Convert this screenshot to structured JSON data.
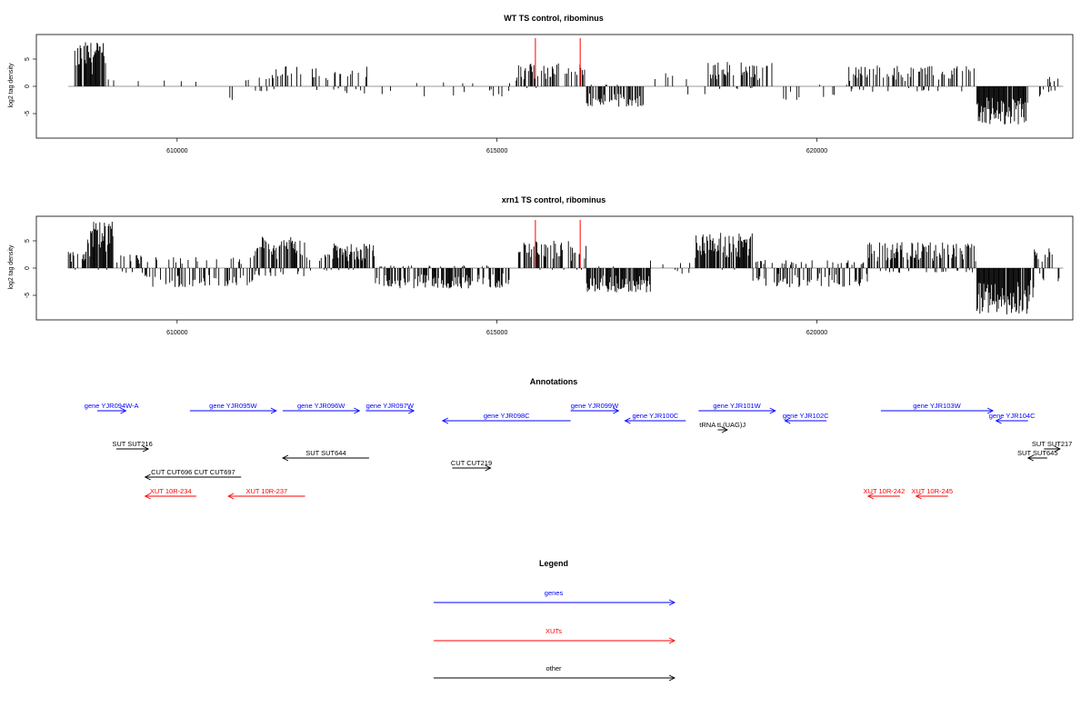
{
  "chart_data": [
    {
      "type": "bar",
      "title": "WT TS control, ribominus",
      "ylabel": "log2 tag density",
      "xlim": [
        607800,
        624000
      ],
      "ylim": [
        -9.5,
        9.5
      ],
      "xticks": [
        610000,
        615000,
        620000
      ],
      "yticks": [
        -5,
        0,
        5
      ],
      "markers": [
        615600,
        616300
      ],
      "segments": [
        {
          "from": 608400,
          "to": 608900,
          "min": -0.3,
          "max": 8.2,
          "density": 0.8
        },
        {
          "from": 608900,
          "to": 609500,
          "min": -0.3,
          "max": 1.5,
          "density": 0.05
        },
        {
          "from": 609500,
          "to": 610800,
          "min": -0.5,
          "max": 1.5,
          "density": 0.04
        },
        {
          "from": 610800,
          "to": 611200,
          "min": -2.8,
          "max": 1.2,
          "density": 0.15
        },
        {
          "from": 611200,
          "to": 613000,
          "min": -1.3,
          "max": 3.8,
          "density": 0.35
        },
        {
          "from": 613000,
          "to": 615200,
          "min": -2.0,
          "max": 0.8,
          "density": 0.08
        },
        {
          "from": 615300,
          "to": 616400,
          "min": -0.3,
          "max": 4.2,
          "density": 0.45
        },
        {
          "from": 616400,
          "to": 617300,
          "min": -3.8,
          "max": 0.3,
          "density": 0.6
        },
        {
          "from": 617300,
          "to": 618300,
          "min": -1.5,
          "max": 2.5,
          "density": 0.05
        },
        {
          "from": 618300,
          "to": 619300,
          "min": -0.5,
          "max": 4.5,
          "density": 0.5
        },
        {
          "from": 619300,
          "to": 620500,
          "min": -2.5,
          "max": 0.5,
          "density": 0.15
        },
        {
          "from": 620500,
          "to": 622500,
          "min": -1.0,
          "max": 3.8,
          "density": 0.45
        },
        {
          "from": 622500,
          "to": 623300,
          "min": -7.0,
          "max": -0.3,
          "density": 0.9
        },
        {
          "from": 623300,
          "to": 623800,
          "min": -2.0,
          "max": 1.8,
          "density": 0.3
        }
      ]
    },
    {
      "type": "bar",
      "title": "xrn1 TS control, ribominus",
      "ylabel": "log2 tag density",
      "xlim": [
        607800,
        624000
      ],
      "ylim": [
        -9.5,
        9.5
      ],
      "xticks": [
        610000,
        615000,
        620000
      ],
      "yticks": [
        -5,
        0,
        5
      ],
      "markers": [
        615600,
        616300
      ],
      "segments": [
        {
          "from": 608300,
          "to": 608600,
          "min": -0.3,
          "max": 3.0,
          "density": 0.5
        },
        {
          "from": 608600,
          "to": 609000,
          "min": -0.3,
          "max": 8.5,
          "density": 0.9
        },
        {
          "from": 609000,
          "to": 609500,
          "min": -1.0,
          "max": 2.5,
          "density": 0.4
        },
        {
          "from": 609500,
          "to": 611200,
          "min": -3.5,
          "max": 2.0,
          "density": 0.45
        },
        {
          "from": 611200,
          "to": 612000,
          "min": -1.5,
          "max": 5.8,
          "density": 0.9
        },
        {
          "from": 612000,
          "to": 612300,
          "min": -1.0,
          "max": 2.0,
          "density": 0.3
        },
        {
          "from": 612300,
          "to": 613100,
          "min": -0.5,
          "max": 4.5,
          "density": 0.7
        },
        {
          "from": 613100,
          "to": 615200,
          "min": -3.8,
          "max": 0.5,
          "density": 0.65
        },
        {
          "from": 615300,
          "to": 616400,
          "min": -0.3,
          "max": 5.0,
          "density": 0.6
        },
        {
          "from": 616400,
          "to": 617400,
          "min": -4.5,
          "max": 0.3,
          "density": 0.85
        },
        {
          "from": 617400,
          "to": 618100,
          "min": -1.2,
          "max": 1.5,
          "density": 0.15
        },
        {
          "from": 618100,
          "to": 619000,
          "min": -0.3,
          "max": 6.5,
          "density": 0.9
        },
        {
          "from": 619000,
          "to": 620800,
          "min": -3.5,
          "max": 1.5,
          "density": 0.5
        },
        {
          "from": 620800,
          "to": 622500,
          "min": -1.0,
          "max": 4.8,
          "density": 0.7
        },
        {
          "from": 622500,
          "to": 623400,
          "min": -8.5,
          "max": -0.3,
          "density": 0.95
        },
        {
          "from": 623400,
          "to": 623800,
          "min": -2.5,
          "max": 4.0,
          "density": 0.5
        }
      ]
    }
  ],
  "annotations": {
    "title": "Annotations",
    "items": [
      {
        "label": "gene YJR094W-A",
        "class": "gene",
        "from": 608750,
        "to": 609200,
        "strand": "+",
        "row": 0
      },
      {
        "label": "gene YJR095W",
        "class": "gene",
        "from": 610200,
        "to": 611550,
        "strand": "+",
        "row": 0
      },
      {
        "label": "gene YJR096W",
        "class": "gene",
        "from": 611650,
        "to": 612850,
        "strand": "+",
        "row": 0
      },
      {
        "label": "gene YJR097W",
        "class": "gene",
        "from": 612950,
        "to": 613700,
        "strand": "+",
        "row": 0
      },
      {
        "label": "gene YJR098C",
        "class": "gene",
        "from": 614150,
        "to": 616150,
        "strand": "-",
        "row": 1
      },
      {
        "label": "gene YJR099W",
        "class": "gene",
        "from": 616150,
        "to": 616900,
        "strand": "+",
        "row": 0
      },
      {
        "label": "gene YJR100C",
        "class": "gene",
        "from": 617000,
        "to": 617950,
        "strand": "-",
        "row": 1
      },
      {
        "label": "gene YJR101W",
        "class": "gene",
        "from": 618150,
        "to": 619350,
        "strand": "+",
        "row": 0
      },
      {
        "label": "gene YJR102C",
        "class": "gene",
        "from": 619500,
        "to": 620150,
        "strand": "-",
        "row": 1
      },
      {
        "label": "gene YJR103W",
        "class": "gene",
        "from": 621000,
        "to": 622750,
        "strand": "+",
        "row": 0
      },
      {
        "label": "gene YJR104C",
        "class": "gene",
        "from": 622800,
        "to": 623300,
        "strand": "-",
        "row": 1
      },
      {
        "label": "tRNA tL(UAG)J",
        "class": "other",
        "from": 618450,
        "to": 618600,
        "strand": "+",
        "row": 2
      },
      {
        "label": "SUT SUT216",
        "class": "other",
        "from": 609050,
        "to": 609550,
        "strand": "+",
        "row": 3
      },
      {
        "label": "SUT SUT644",
        "class": "other",
        "from": 611650,
        "to": 613000,
        "strand": "-",
        "row": 4
      },
      {
        "label": "CUT CUT219",
        "class": "other",
        "from": 614300,
        "to": 614900,
        "strand": "+",
        "row": 5
      },
      {
        "label": "CUT CUT696 CUT CUT697",
        "class": "other",
        "from": 609500,
        "to": 611000,
        "strand": "-",
        "row": 6
      },
      {
        "label": "SUT SUT217",
        "class": "other",
        "from": 623550,
        "to": 623800,
        "strand": "+",
        "row": 3
      },
      {
        "label": "SUT SUT645",
        "class": "other",
        "from": 623300,
        "to": 623600,
        "strand": "-",
        "row": 4
      },
      {
        "label": "XUT 10R-234",
        "class": "xut",
        "from": 609500,
        "to": 610300,
        "strand": "-",
        "row": 7
      },
      {
        "label": "XUT 10R-237",
        "class": "xut",
        "from": 610800,
        "to": 612000,
        "strand": "-",
        "row": 7
      },
      {
        "label": "XUT 10R-242",
        "class": "xut",
        "from": 620800,
        "to": 621300,
        "strand": "-",
        "row": 7
      },
      {
        "label": "XUT 10R-245",
        "class": "xut",
        "from": 621550,
        "to": 622050,
        "strand": "-",
        "row": 7
      }
    ]
  },
  "legend": {
    "title": "Legend",
    "items": [
      {
        "label": "genes",
        "class": "gene"
      },
      {
        "label": "XUTs",
        "class": "xut"
      },
      {
        "label": "other",
        "class": "other"
      }
    ]
  },
  "colors": {
    "gene": "#0000ff",
    "xut": "#ff0000",
    "other": "#000000",
    "marker": "#ff0000",
    "bars": "#000000"
  }
}
